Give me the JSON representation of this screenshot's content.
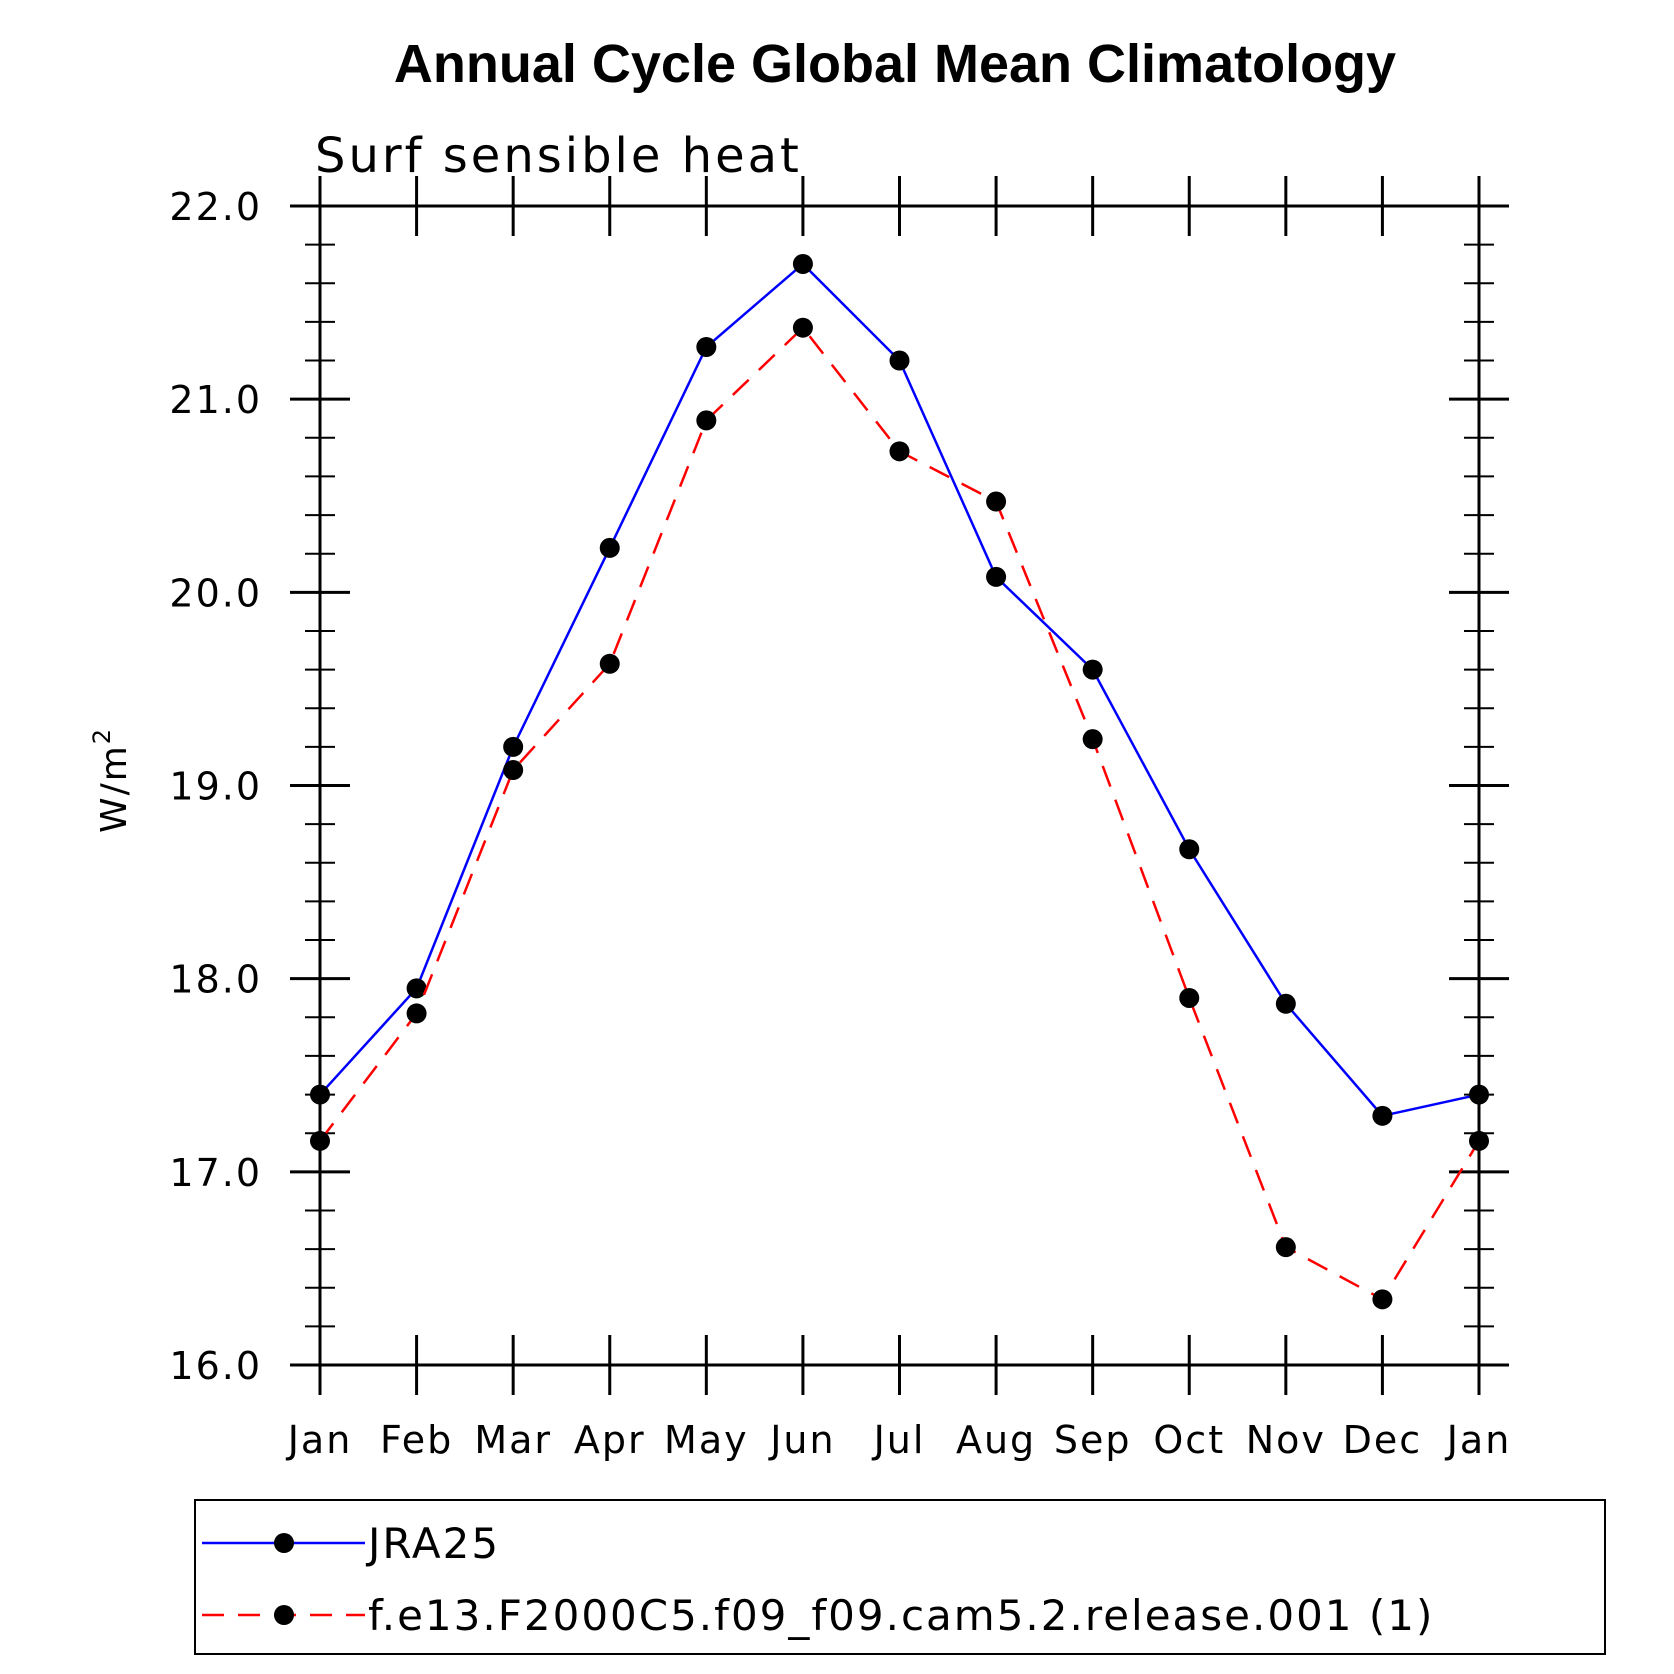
{
  "chart_data": {
    "type": "line",
    "title": "Annual Cycle Global Mean Climatology",
    "subtitle": "Surf sensible heat",
    "ylabel": "W/m",
    "ylabel_sup": "2",
    "xlabel": "",
    "ylim": [
      16.0,
      22.0
    ],
    "yticks": [
      "16.0",
      "17.0",
      "18.0",
      "19.0",
      "20.0",
      "21.0",
      "22.0"
    ],
    "categories": [
      "Jan",
      "Feb",
      "Mar",
      "Apr",
      "May",
      "Jun",
      "Jul",
      "Aug",
      "Sep",
      "Oct",
      "Nov",
      "Dec",
      "Jan"
    ],
    "grid": false,
    "legend_position": "bottom",
    "series": [
      {
        "name": "JRA25",
        "color": "#0000ff",
        "line_style": "solid",
        "marker": "filled-circle",
        "values": [
          17.4,
          17.95,
          19.2,
          20.23,
          21.27,
          21.7,
          21.2,
          20.08,
          19.6,
          18.67,
          17.87,
          17.29,
          17.4
        ]
      },
      {
        "name": "f.e13.F2000C5.f09_f09.cam5.2.release.001 (1)",
        "color": "#ff0000",
        "line_style": "dashed",
        "marker": "filled-circle",
        "values": [
          17.16,
          17.82,
          19.08,
          19.63,
          20.89,
          21.37,
          20.73,
          20.47,
          19.24,
          17.9,
          16.61,
          16.34,
          17.16
        ]
      }
    ]
  }
}
